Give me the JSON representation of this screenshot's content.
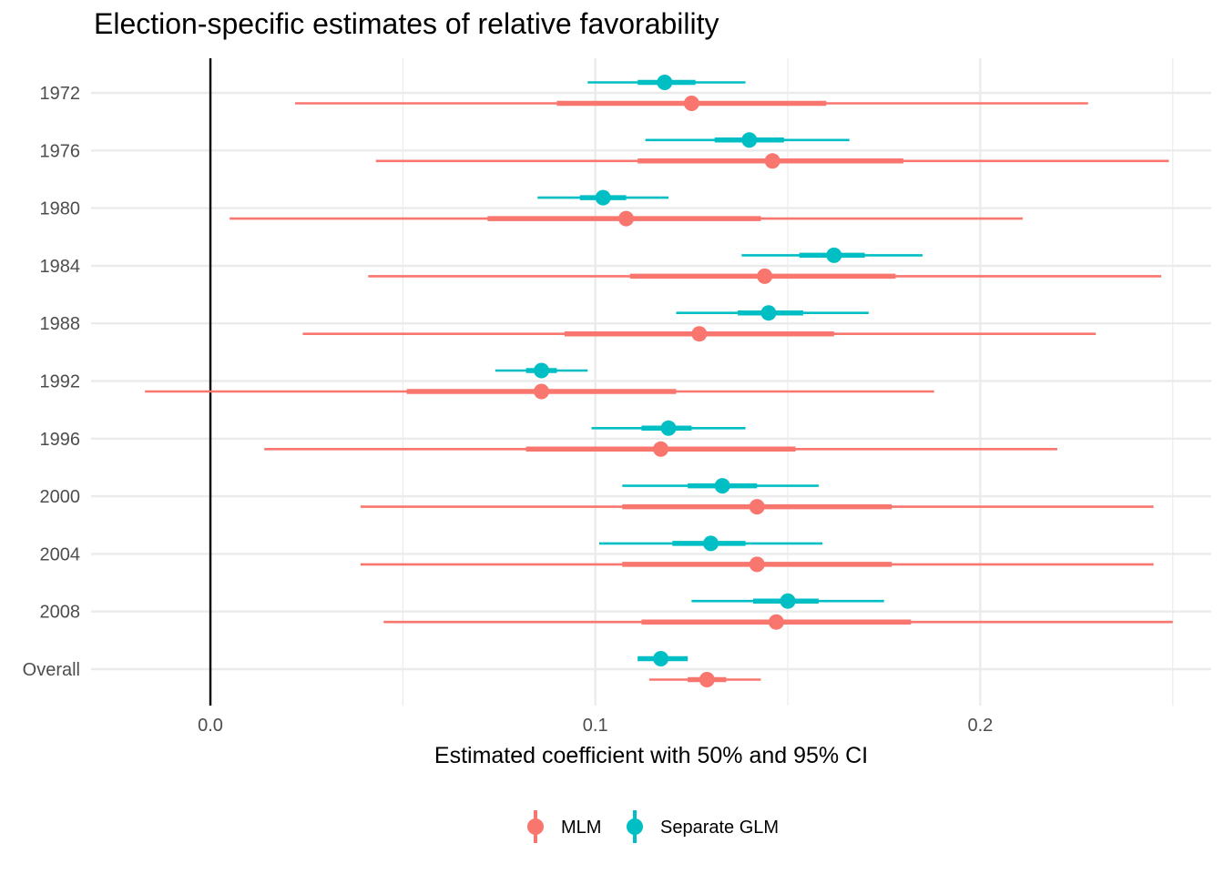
{
  "chart_data": {
    "type": "scatter",
    "title": "Election-specific estimates of relative favorability",
    "xlabel": "Estimated coefficient with 50% and 95% CI",
    "ylabel": "",
    "xlim": [
      -0.031,
      0.26
    ],
    "x_ticks": [
      0.0,
      0.1,
      0.2
    ],
    "x_tick_labels": [
      "0.0",
      "0.1",
      "0.2"
    ],
    "vline_at": 0,
    "grid": true,
    "legend_position": "bottom",
    "categories": [
      "1972",
      "1976",
      "1980",
      "1984",
      "1988",
      "1992",
      "1996",
      "2000",
      "2004",
      "2008",
      "Overall"
    ],
    "series": [
      {
        "name": "MLM",
        "color": "#F8766D",
        "estimate": [
          0.125,
          0.146,
          0.108,
          0.144,
          0.127,
          0.086,
          0.117,
          0.142,
          0.142,
          0.147,
          0.129
        ],
        "ci50_low": [
          0.09,
          0.111,
          0.072,
          0.109,
          0.092,
          0.051,
          0.082,
          0.107,
          0.107,
          0.112,
          0.124
        ],
        "ci50_high": [
          0.16,
          0.18,
          0.143,
          0.178,
          0.162,
          0.121,
          0.152,
          0.177,
          0.177,
          0.182,
          0.134
        ],
        "ci95_low": [
          0.022,
          0.043,
          0.005,
          0.041,
          0.024,
          -0.017,
          0.014,
          0.039,
          0.039,
          0.045,
          0.114
        ],
        "ci95_high": [
          0.228,
          0.249,
          0.211,
          0.247,
          0.23,
          0.188,
          0.22,
          0.245,
          0.245,
          0.25,
          0.143
        ]
      },
      {
        "name": "Separate GLM",
        "color": "#00BFC4",
        "estimate": [
          0.118,
          0.14,
          0.102,
          0.162,
          0.145,
          0.086,
          0.119,
          0.133,
          0.13,
          0.15,
          0.117
        ],
        "ci50_low": [
          0.111,
          0.131,
          0.096,
          0.153,
          0.137,
          0.082,
          0.112,
          0.124,
          0.12,
          0.141,
          0.111
        ],
        "ci50_high": [
          0.126,
          0.149,
          0.108,
          0.17,
          0.154,
          0.09,
          0.125,
          0.142,
          0.139,
          0.158,
          0.124
        ],
        "ci95_low": [
          0.098,
          0.113,
          0.085,
          0.138,
          0.121,
          0.074,
          0.099,
          0.107,
          0.101,
          0.125,
          0.111
        ],
        "ci95_high": [
          0.139,
          0.166,
          0.119,
          0.185,
          0.171,
          0.098,
          0.139,
          0.158,
          0.159,
          0.175,
          0.124
        ]
      }
    ]
  }
}
